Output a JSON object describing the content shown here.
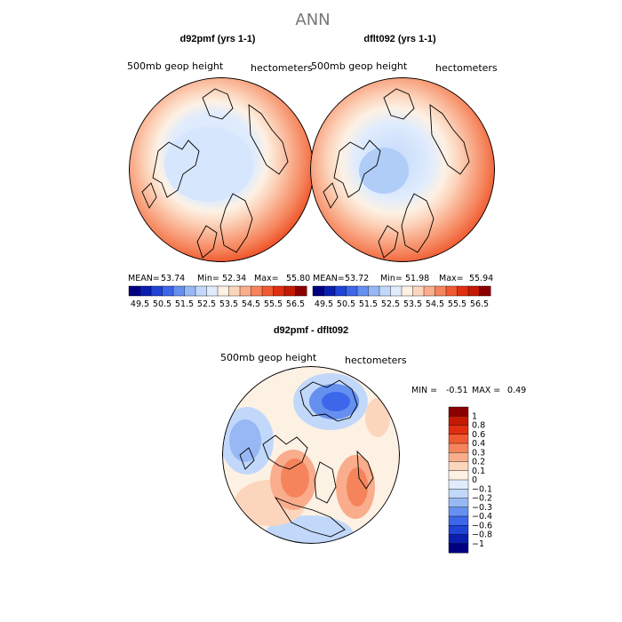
{
  "title": "ANN",
  "chart_data": [
    {
      "type": "heatmap",
      "projection": "polar-stereographic",
      "title": "d92pmf (yrs 1-1)",
      "left_label": "500mb geop height",
      "right_label": "hectometers",
      "stats": {
        "mean_label": "MEAN=",
        "mean": "53.74",
        "min_label": "Min=",
        "min": "52.34",
        "max_label": "Max=",
        "max": "55.80"
      },
      "colorbar": {
        "ticks": [
          "49.5",
          "50.5",
          "51.5",
          "52.5",
          "53.5",
          "54.5",
          "55.5",
          "56.5"
        ],
        "colors": [
          "#000080",
          "#0a1fb0",
          "#1f44d6",
          "#3d67ea",
          "#6690f0",
          "#97b8f5",
          "#c2d8fa",
          "#e0ecfd",
          "#fdf1e4",
          "#fcd5bd",
          "#f9ad8c",
          "#f5845c",
          "#f05a30",
          "#e02f10",
          "#c41a05",
          "#8b0000"
        ]
      }
    },
    {
      "type": "heatmap",
      "projection": "polar-stereographic",
      "title": "dflt092 (yrs 1-1)",
      "left_label": "500mb geop height",
      "right_label": "hectometers",
      "stats": {
        "mean_label": "MEAN=",
        "mean": "53.72",
        "min_label": "Min=",
        "min": "51.98",
        "max_label": "Max=",
        "max": "55.94"
      },
      "colorbar": {
        "ticks": [
          "49.5",
          "50.5",
          "51.5",
          "52.5",
          "53.5",
          "54.5",
          "55.5",
          "56.5"
        ],
        "colors": [
          "#000080",
          "#0a1fb0",
          "#1f44d6",
          "#3d67ea",
          "#6690f0",
          "#97b8f5",
          "#c2d8fa",
          "#e0ecfd",
          "#fdf1e4",
          "#fcd5bd",
          "#f9ad8c",
          "#f5845c",
          "#f05a30",
          "#e02f10",
          "#c41a05",
          "#8b0000"
        ]
      }
    },
    {
      "type": "heatmap",
      "projection": "polar-stereographic",
      "title": "d92pmf - dflt092",
      "left_label": "500mb geop height",
      "right_label": "hectometers",
      "stats": {
        "min_label": "MIN =",
        "min": "-0.51",
        "max_label": "MAX =",
        "max": "0.49"
      },
      "colorbar": {
        "orientation": "vertical",
        "ticks": [
          "1",
          "0.8",
          "0.6",
          "0.4",
          "0.3",
          "0.2",
          "0.1",
          "0",
          "−0.1",
          "−0.2",
          "−0.3",
          "−0.4",
          "−0.6",
          "−0.8",
          "−1"
        ],
        "colors": [
          "#8b0000",
          "#c41a05",
          "#e02f10",
          "#f05a30",
          "#f5845c",
          "#f9ad8c",
          "#fcd5bd",
          "#fdf1e4",
          "#e0ecfd",
          "#c2d8fa",
          "#97b8f5",
          "#6690f0",
          "#3d67ea",
          "#1f44d6",
          "#0a1fb0",
          "#000080"
        ]
      }
    }
  ]
}
